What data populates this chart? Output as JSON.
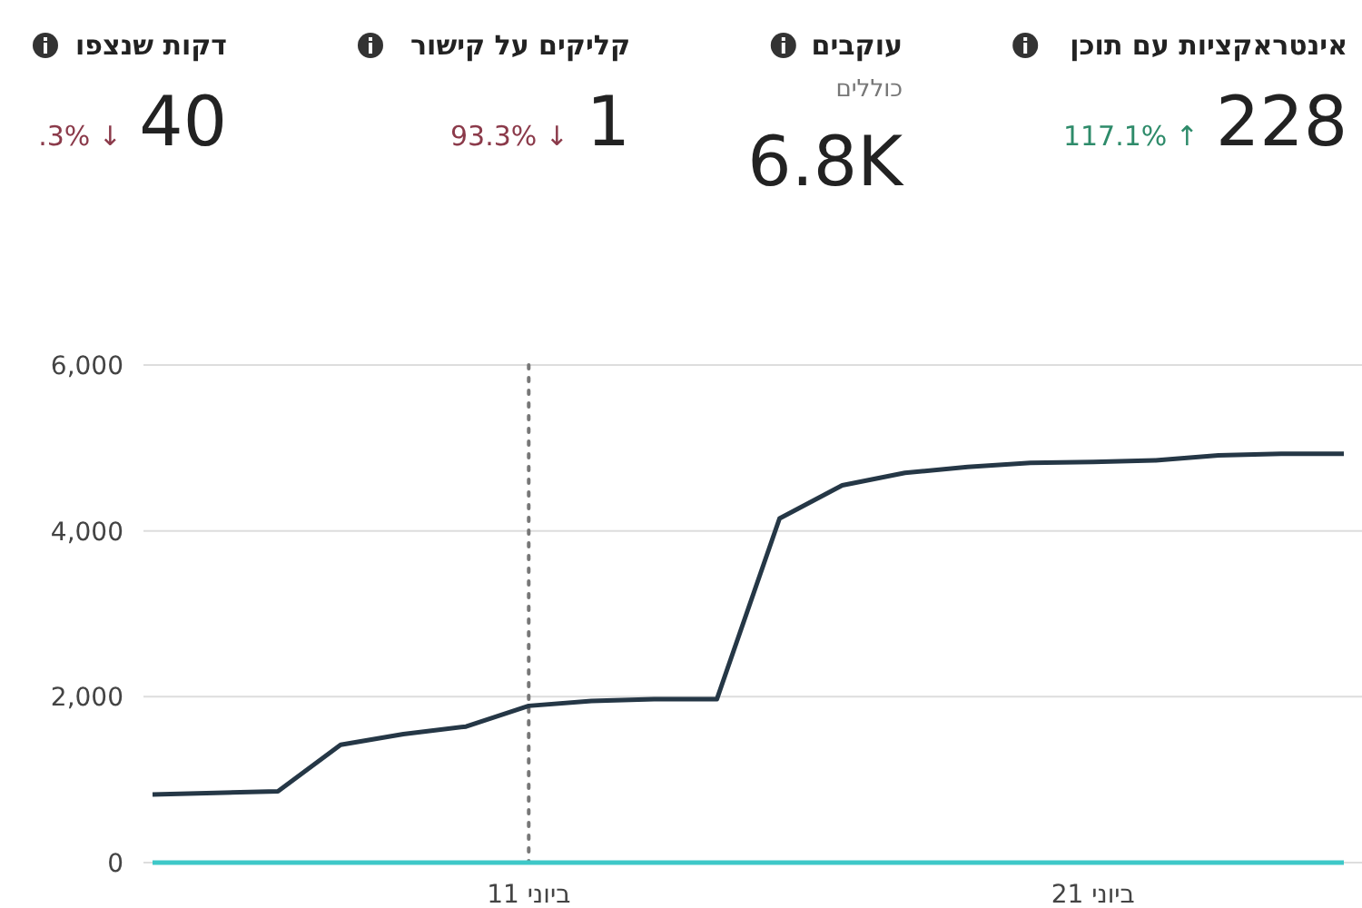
{
  "chart_data": [
    {
      "type": "other",
      "categories": [
        "אינטראקציות עם תוכן",
        "עוקבים",
        "קליקים על קישור",
        "דקות שנצפו"
      ],
      "value_labels": [
        "228",
        "6.8K",
        "1",
        "40"
      ],
      "annotations": [
        "117.1% ↑",
        "כוללים",
        "93.3% ↓",
        ".3% ↓"
      ],
      "colors": [
        "#2e8b6a",
        "#777777",
        "#8b3a4a",
        "#8b3a4a"
      ]
    },
    {
      "type": "line",
      "categories": [
        null,
        null,
        null,
        null,
        null,
        null,
        "11 ביוני",
        null,
        null,
        null,
        null,
        null,
        null,
        null,
        null,
        "21 ביוני",
        null,
        null,
        null,
        null
      ],
      "series": [
        {
          "color": "#253746",
          "values": [
            820,
            840,
            860,
            1420,
            1550,
            1640,
            1890,
            1950,
            1970,
            1970,
            4150,
            4550,
            4700,
            4770,
            4820,
            4830,
            4850,
            4910,
            4930,
            4930
          ]
        },
        {
          "color": "#3ec8c8",
          "values": [
            0,
            0,
            0,
            0,
            0,
            0,
            0,
            0,
            0,
            0,
            0,
            0,
            0,
            0,
            0,
            0,
            0,
            0,
            0,
            0
          ]
        }
      ],
      "ylim": [
        0,
        6000
      ],
      "yticks": [
        0,
        {
          "value": 2000,
          "label": "2,000"
        },
        {
          "value": 4000,
          "label": "4,000"
        },
        {
          "value": 6000,
          "label": "6,000"
        }
      ],
      "grid": "y",
      "marker": "none",
      "line_style": "solid",
      "ref_lines": [
        {
          "axis": "x",
          "value": "11 ביוני",
          "color": "#777777",
          "line_style": "dotted"
        }
      ]
    }
  ]
}
